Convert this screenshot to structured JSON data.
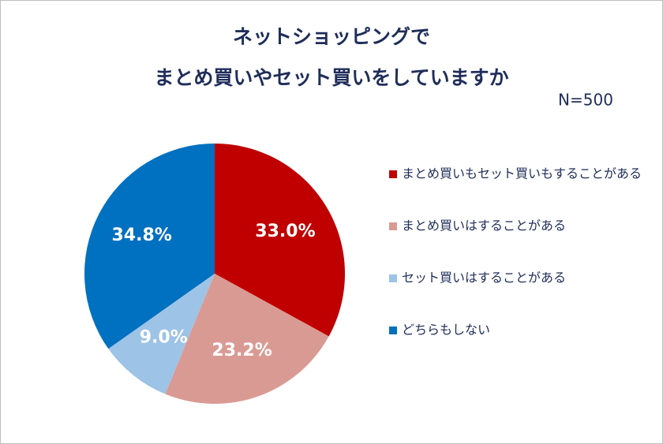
{
  "chart_data": {
    "type": "pie",
    "title": [
      "ネットショッピングで",
      "まとめ買いやセット買いをしていますか"
    ],
    "subtitle": "N=500",
    "categories": [
      "まとめ買いもセット買いもすることがある",
      "まとめ買いはすることがある",
      "セット買いはすることがある",
      "どちらもしない"
    ],
    "values": [
      33.0,
      23.2,
      9.0,
      34.8
    ],
    "value_labels": [
      "33.0%",
      "23.2%",
      "9.0%",
      "34.8%"
    ],
    "colors": [
      "#c00000",
      "#da9a94",
      "#9dc3e6",
      "#0070c0"
    ],
    "legend": "right"
  }
}
